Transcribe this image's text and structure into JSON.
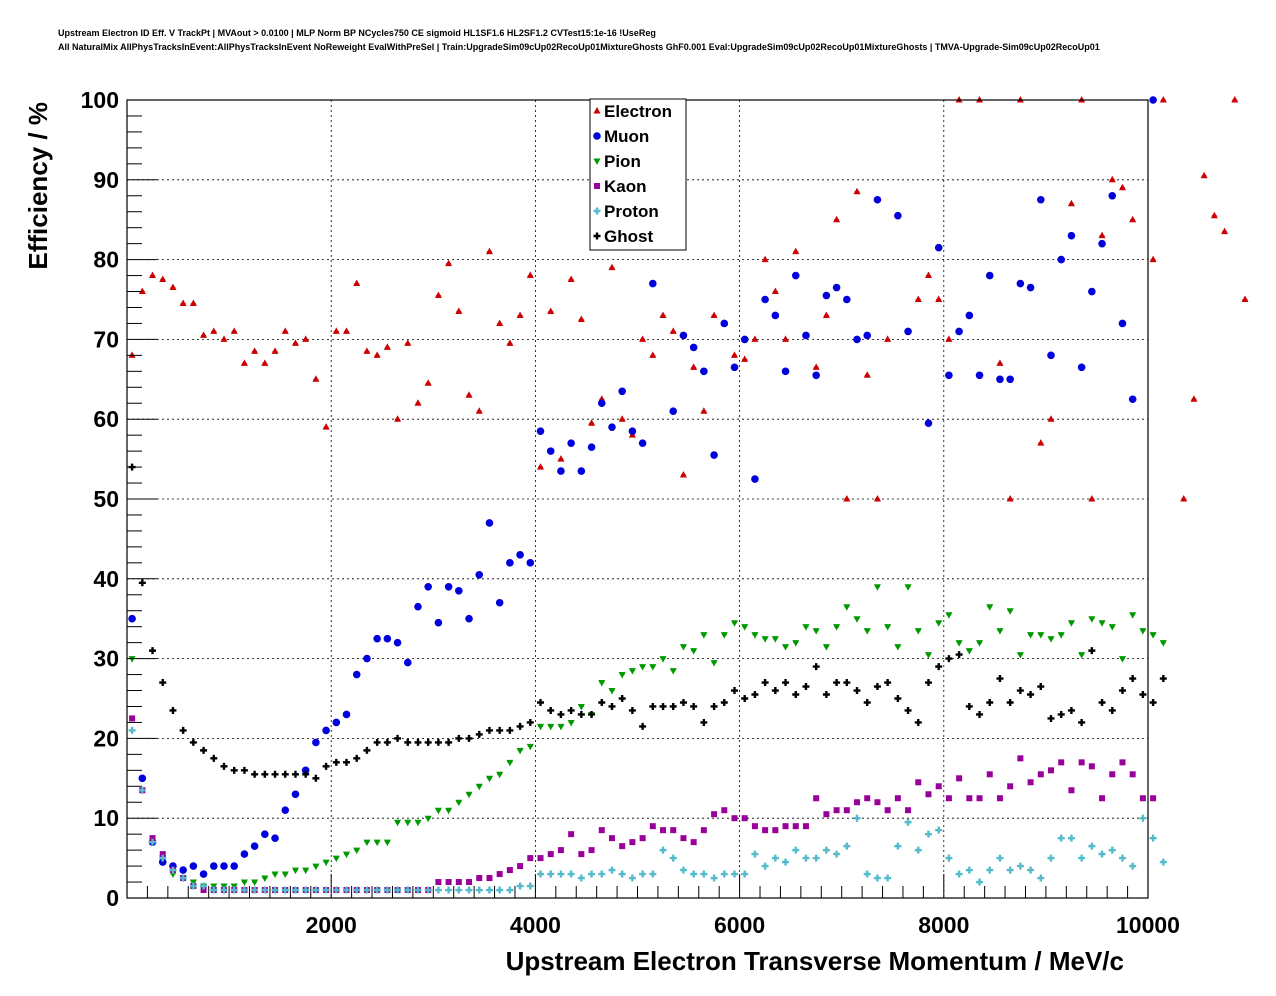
{
  "header": {
    "title_line1": "Upstream Electron ID Eff. V TrackPt | MVAout > 0.0100 | MLP Norm BP NCycles750 CE sigmoid HL1SF1.6 HL2SF1.2 CVTest15:1e-16 !UseReg",
    "title_line2": "All NaturalMix AllPhysTracksInEvent:AllPhysTracksInEvent NoReweight EvalWithPreSel | Train:UpgradeSim09cUp02RecoUp01MixtureGhosts GhF0.001 Eval:UpgradeSim09cUp02RecoUp01MixtureGhosts | TMVA-Upgrade-Sim09cUp02RecoUp01"
  },
  "chart_data": {
    "type": "scatter",
    "xlabel": "Upstream Electron Transverse Momentum / MeV/c",
    "ylabel": "Efficiency / %",
    "xlim": [
      0,
      10000
    ],
    "ylim": [
      0,
      100
    ],
    "xticks": [
      2000,
      4000,
      6000,
      8000,
      10000
    ],
    "yticks": [
      0,
      10,
      20,
      30,
      40,
      50,
      60,
      70,
      80,
      90,
      100
    ],
    "x_start": 50,
    "x_step": 100,
    "grid": true,
    "legend_position": "top-center",
    "series": [
      {
        "name": "Electron",
        "color": "#cc0000",
        "marker": "triangle-up",
        "values": [
          68,
          76,
          78,
          77.5,
          76.5,
          74.5,
          74.5,
          70.5,
          71,
          70,
          71,
          67,
          68.5,
          67,
          68.5,
          71,
          69.5,
          70,
          65,
          59,
          71,
          71,
          77,
          68.5,
          68,
          69,
          60,
          69.5,
          62,
          64.5,
          75.5,
          79.5,
          73.5,
          63,
          61,
          81,
          72,
          69.5,
          73,
          78,
          54,
          73.5,
          55,
          77.5,
          72.5,
          59.5,
          62.5,
          79,
          60,
          58,
          70,
          68,
          73,
          71,
          53,
          66.5,
          61,
          73,
          72,
          68,
          67.5,
          70,
          80,
          76,
          70,
          81,
          null,
          66.5,
          73,
          85,
          50,
          88.5,
          65.5,
          50,
          70,
          null,
          null,
          75,
          78,
          75,
          70,
          100,
          null,
          100,
          null,
          67,
          50,
          100,
          null,
          57,
          60,
          80,
          87,
          100,
          50,
          83,
          90,
          89,
          85,
          null,
          80,
          100,
          null,
          50,
          62.5,
          90.5,
          85.5,
          83.5,
          100,
          75
        ]
      },
      {
        "name": "Muon",
        "color": "#0000dd",
        "marker": "circle",
        "values": [
          35,
          15,
          7,
          4.5,
          4,
          3.5,
          4,
          3,
          4,
          4,
          4,
          5.5,
          6.5,
          8,
          7.5,
          11,
          13,
          16,
          19.5,
          21,
          22,
          23,
          28,
          30,
          32.5,
          32.5,
          32,
          29.5,
          36.5,
          39,
          34.5,
          39,
          38.5,
          35,
          40.5,
          47,
          37,
          42,
          43,
          42,
          58.5,
          56,
          53.5,
          57,
          53.5,
          56.5,
          62,
          59,
          63.5,
          58.5,
          57,
          77,
          null,
          61,
          70.5,
          69,
          66,
          55.5,
          72,
          66.5,
          70,
          52.5,
          75,
          73,
          66,
          78,
          70.5,
          65.5,
          75.5,
          76.5,
          75,
          70,
          70.5,
          87.5,
          null,
          85.5,
          71,
          null,
          59.5,
          81.5,
          65.5,
          71,
          73,
          65.5,
          78,
          65,
          65,
          77,
          76.5,
          87.5,
          68,
          80,
          83,
          66.5,
          76,
          82,
          88,
          72,
          62.5,
          null,
          100
        ]
      },
      {
        "name": "Pion",
        "color": "#009900",
        "marker": "triangle-down",
        "values": [
          30,
          13.5,
          7,
          5,
          3,
          2.5,
          2,
          1.5,
          1.5,
          1.5,
          1.5,
          2,
          2,
          2.5,
          3,
          3,
          3.5,
          3.5,
          4,
          4.5,
          5,
          5.5,
          6,
          7,
          7,
          7,
          9.5,
          9.5,
          9.5,
          10,
          11,
          11,
          12,
          13,
          14,
          15,
          15.5,
          17,
          18.5,
          19,
          21.5,
          21.5,
          21.5,
          22,
          24,
          23,
          27,
          26,
          28,
          28.5,
          29,
          29,
          30,
          28.5,
          31.5,
          31,
          33,
          29.5,
          33,
          34.5,
          34,
          33,
          32.5,
          32.5,
          31.5,
          32,
          34,
          33.5,
          31.5,
          34,
          36.5,
          35,
          33.5,
          39,
          34,
          31.5,
          39,
          33.5,
          30.5,
          34.5,
          35.5,
          32,
          31,
          32,
          36.5,
          33.5,
          36,
          30.5,
          33,
          33,
          32.5,
          33,
          34.5,
          30.5,
          35,
          34.5,
          34,
          30,
          35.5,
          33.5,
          33,
          32
        ]
      },
      {
        "name": "Kaon",
        "color": "#990099",
        "marker": "square",
        "values": [
          22.5,
          13.5,
          7.5,
          5.5,
          3.5,
          2.5,
          1.5,
          1,
          1,
          1,
          1,
          1,
          1,
          1,
          1,
          1,
          1,
          1,
          1,
          1,
          1,
          1,
          1,
          1,
          1,
          1,
          1,
          1,
          1,
          1,
          2,
          2,
          2,
          2,
          2.5,
          2.5,
          3,
          3.5,
          4,
          5,
          5,
          5.5,
          6,
          8,
          5.5,
          6,
          8.5,
          7.5,
          6.5,
          7,
          7.5,
          9,
          8.5,
          8.5,
          7.5,
          7,
          8.5,
          10.5,
          11,
          10,
          10,
          9,
          8.5,
          8.5,
          9,
          9,
          9,
          12.5,
          10.5,
          11,
          11,
          12,
          12.5,
          12,
          11,
          12.5,
          11,
          14.5,
          13,
          14,
          12.5,
          15,
          12.5,
          12.5,
          15.5,
          12.5,
          14,
          17.5,
          14.5,
          15.5,
          16,
          17,
          13.5,
          17,
          16.5,
          12.5,
          15.5,
          17,
          15.5,
          12.5,
          12.5
        ]
      },
      {
        "name": "Proton",
        "color": "#55bbcc",
        "marker": "cross",
        "values": [
          21,
          13.5,
          7,
          5,
          3.5,
          2.5,
          1.5,
          1.5,
          1,
          1,
          1,
          1,
          1,
          1,
          1,
          1,
          1,
          1,
          1,
          1,
          1,
          1,
          1,
          1,
          1,
          1,
          1,
          1,
          1,
          1,
          1,
          1,
          1,
          1,
          1,
          1,
          1,
          1,
          1.5,
          1.5,
          3,
          3,
          3,
          3,
          2.5,
          3,
          3,
          3.5,
          3,
          2.5,
          3,
          3,
          6,
          5,
          3.5,
          3,
          3,
          2.5,
          3,
          3,
          3,
          5.5,
          4,
          5,
          4.5,
          6,
          5,
          5,
          6,
          5.5,
          6.5,
          10,
          3,
          2.5,
          2.5,
          6.5,
          9.5,
          6,
          8,
          8.5,
          5,
          3,
          3.5,
          2,
          3.5,
          5,
          3.5,
          4,
          3.5,
          2.5,
          5,
          7.5,
          7.5,
          5,
          6.5,
          5.5,
          6,
          5,
          4,
          10,
          7.5,
          4.5
        ]
      },
      {
        "name": "Ghost",
        "color": "#000000",
        "marker": "cross",
        "values": [
          54,
          39.5,
          31,
          27,
          23.5,
          21,
          19.5,
          18.5,
          17.5,
          16.5,
          16,
          16,
          15.5,
          15.5,
          15.5,
          15.5,
          15.5,
          15.5,
          15,
          16.5,
          17,
          17,
          17.5,
          18.5,
          19.5,
          19.5,
          20,
          19.5,
          19.5,
          19.5,
          19.5,
          19.5,
          20,
          20,
          20.5,
          21,
          21,
          21,
          21.5,
          22,
          24.5,
          23.5,
          23,
          23.5,
          23,
          23,
          24.5,
          24,
          25,
          23.5,
          21.5,
          24,
          24,
          24,
          24.5,
          24,
          22,
          24,
          24.5,
          26,
          25,
          25.5,
          27,
          26,
          27,
          25.5,
          26.5,
          29,
          25.5,
          27,
          27,
          26,
          24.5,
          26.5,
          27,
          25,
          23.5,
          22,
          27,
          29,
          30,
          30.5,
          24,
          23,
          24.5,
          27.5,
          24.5,
          26,
          25.5,
          26.5,
          22.5,
          23,
          23.5,
          22,
          31,
          24.5,
          23.5,
          26,
          27.5,
          25.5,
          24.5,
          27.5
        ]
      }
    ]
  }
}
